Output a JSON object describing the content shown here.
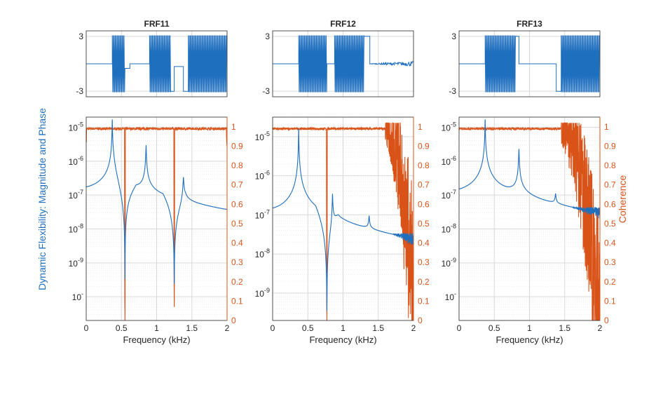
{
  "colors": {
    "magnitude": "#1f6fbf",
    "coherence": "#d95319",
    "axis": "#262626",
    "grid": "#d9d9d9"
  },
  "figure": {
    "ylabel_left": "Dynamic Flexibility: Magnitude and Phase",
    "ylabel_right": "Coherence",
    "xlabel": "Frequency (kHz)"
  },
  "chart_data": [
    {
      "type": "line",
      "title": "FRF11",
      "phase": {
        "ylim": [
          -3.6,
          3.6
        ],
        "yticks": [
          "3",
          "-3"
        ],
        "xlim": [
          0,
          2
        ],
        "segments": [
          {
            "x0": 0.0,
            "x1": 0.37,
            "kind": "flat",
            "level": 0
          },
          {
            "x0": 0.37,
            "x1": 0.55,
            "kind": "wrap"
          },
          {
            "x0": 0.55,
            "x1": 0.62,
            "kind": "flat",
            "level": -0.5
          },
          {
            "x0": 0.62,
            "x1": 0.9,
            "kind": "flat",
            "level": 0
          },
          {
            "x0": 0.9,
            "x1": 1.2,
            "kind": "wrap"
          },
          {
            "x0": 1.2,
            "x1": 1.25,
            "kind": "flat",
            "level": -3
          },
          {
            "x0": 1.25,
            "x1": 1.38,
            "kind": "flat",
            "level": -0.3
          },
          {
            "x0": 1.38,
            "x1": 1.45,
            "kind": "flat",
            "level": -3
          },
          {
            "x0": 1.45,
            "x1": 2.0,
            "kind": "wrap"
          }
        ]
      },
      "magnitude": {
        "ylim_log": [
          -10.7,
          -4.7
        ],
        "yticks": [
          "10-5",
          "10-6",
          "10-7",
          "10-8",
          "10-9",
          "10-10"
        ],
        "floor": 3e-08,
        "modal_decay": 0.55,
        "peaks": [
          {
            "f": 0.37,
            "a": 3e-05
          },
          {
            "f": 0.85,
            "a": 4.5e-06
          },
          {
            "f": 1.38,
            "a": 6e-07
          }
        ],
        "notches": [
          {
            "f": 0.55,
            "a": 1e-10,
            "w": 0.004
          },
          {
            "f": 1.25,
            "a": 2e-10,
            "w": 0.004
          }
        ],
        "start": 6e-08,
        "end": 3.5e-09
      },
      "coherence": {
        "ylim": [
          0,
          1.05
        ],
        "level": 0.99,
        "noise_from": null,
        "dips": [
          {
            "f": 0.55,
            "to": 0.0,
            "w": 0.006
          },
          {
            "f": 1.25,
            "to": 0.07,
            "w": 0.006
          },
          {
            "f": 0.0,
            "to": 0.92,
            "w": 0.0
          },
          {
            "f": 2.0,
            "to": 0.9,
            "w": 0.01
          }
        ]
      },
      "xticks": [
        "0",
        "0.5",
        "1",
        "1.5",
        "2"
      ],
      "coherence_ticks": [
        "1",
        "0.9",
        "0.8",
        "0.7",
        "0.6",
        "0.5",
        "0.4",
        "0.3",
        "0.2",
        "0.1",
        "0"
      ]
    },
    {
      "type": "line",
      "title": "FRF12",
      "phase": {
        "ylim": [
          -3.6,
          3.6
        ],
        "yticks": [
          "3",
          "-3"
        ],
        "xlim": [
          0,
          2
        ],
        "segments": [
          {
            "x0": 0.0,
            "x1": 0.37,
            "kind": "flat",
            "level": 0
          },
          {
            "x0": 0.37,
            "x1": 0.77,
            "kind": "wrap"
          },
          {
            "x0": 0.77,
            "x1": 0.88,
            "kind": "flat",
            "level": 0
          },
          {
            "x0": 0.88,
            "x1": 1.3,
            "kind": "wrap"
          },
          {
            "x0": 1.3,
            "x1": 1.38,
            "kind": "flat",
            "level": 3
          },
          {
            "x0": 1.38,
            "x1": 2.0,
            "kind": "noisy",
            "level": 0
          }
        ]
      },
      "magnitude": {
        "ylim_log": [
          -9.7,
          -4.5
        ],
        "yticks": [
          "10-5",
          "10-6",
          "10-7",
          "10-8",
          "10-9"
        ],
        "floor": 2.5e-08,
        "modal_decay": 0.5,
        "peaks": [
          {
            "f": 0.37,
            "a": 3e-05
          },
          {
            "f": 0.85,
            "a": 1.2e-06
          },
          {
            "f": 1.37,
            "a": 9e-08
          }
        ],
        "notches": [
          {
            "f": 0.77,
            "a": 3e-10,
            "w": 0.004
          }
        ],
        "start": 5e-08,
        "end": 1e-09,
        "noise_from": 1.7
      },
      "coherence": {
        "ylim": [
          0,
          1.05
        ],
        "level": 0.99,
        "noise_from": 1.6,
        "dips": [
          {
            "f": 0.77,
            "to": 0.0,
            "w": 0.006
          }
        ]
      },
      "xticks": [
        "0",
        "0.5",
        "1",
        "1.5",
        "2"
      ],
      "coherence_ticks": [
        "1",
        "0.9",
        "0.8",
        "0.7",
        "0.6",
        "0.5",
        "0.4",
        "0.3",
        "0.2",
        "0.1",
        "0"
      ]
    },
    {
      "type": "line",
      "title": "FRF13",
      "phase": {
        "ylim": [
          -3.6,
          3.6
        ],
        "yticks": [
          "3",
          "-3"
        ],
        "xlim": [
          0,
          2
        ],
        "segments": [
          {
            "x0": 0.0,
            "x1": 0.37,
            "kind": "flat",
            "level": 0
          },
          {
            "x0": 0.37,
            "x1": 0.8,
            "kind": "wrap"
          },
          {
            "x0": 0.8,
            "x1": 0.85,
            "kind": "flat",
            "level": 3
          },
          {
            "x0": 0.85,
            "x1": 1.38,
            "kind": "flat",
            "level": 0
          },
          {
            "x0": 1.38,
            "x1": 1.45,
            "kind": "flat",
            "level": -3
          },
          {
            "x0": 1.45,
            "x1": 2.0,
            "kind": "wrap"
          }
        ]
      },
      "magnitude": {
        "ylim_log": [
          -10.7,
          -4.7
        ],
        "yticks": [
          "10-5",
          "10-6",
          "10-7",
          "10-8",
          "10-9",
          "10-10"
        ],
        "floor": 2.2e-08,
        "modal_decay": 0.55,
        "peaks": [
          {
            "f": 0.37,
            "a": 3e-05
          },
          {
            "f": 0.85,
            "a": 3.5e-06
          },
          {
            "f": 1.37,
            "a": 9e-08
          }
        ],
        "notches": [],
        "start": 4e-08,
        "end": 1.5e-09,
        "noise_from": 1.6
      },
      "coherence": {
        "ylim": [
          0,
          1.05
        ],
        "level": 0.99,
        "noise_from": 1.45,
        "dips": []
      },
      "xticks": [
        "0",
        "0.5",
        "1",
        "1.5",
        "2"
      ],
      "coherence_ticks": [
        "1",
        "0.9",
        "0.8",
        "0.7",
        "0.6",
        "0.5",
        "0.4",
        "0.3",
        "0.2",
        "0.1",
        "0"
      ]
    }
  ]
}
